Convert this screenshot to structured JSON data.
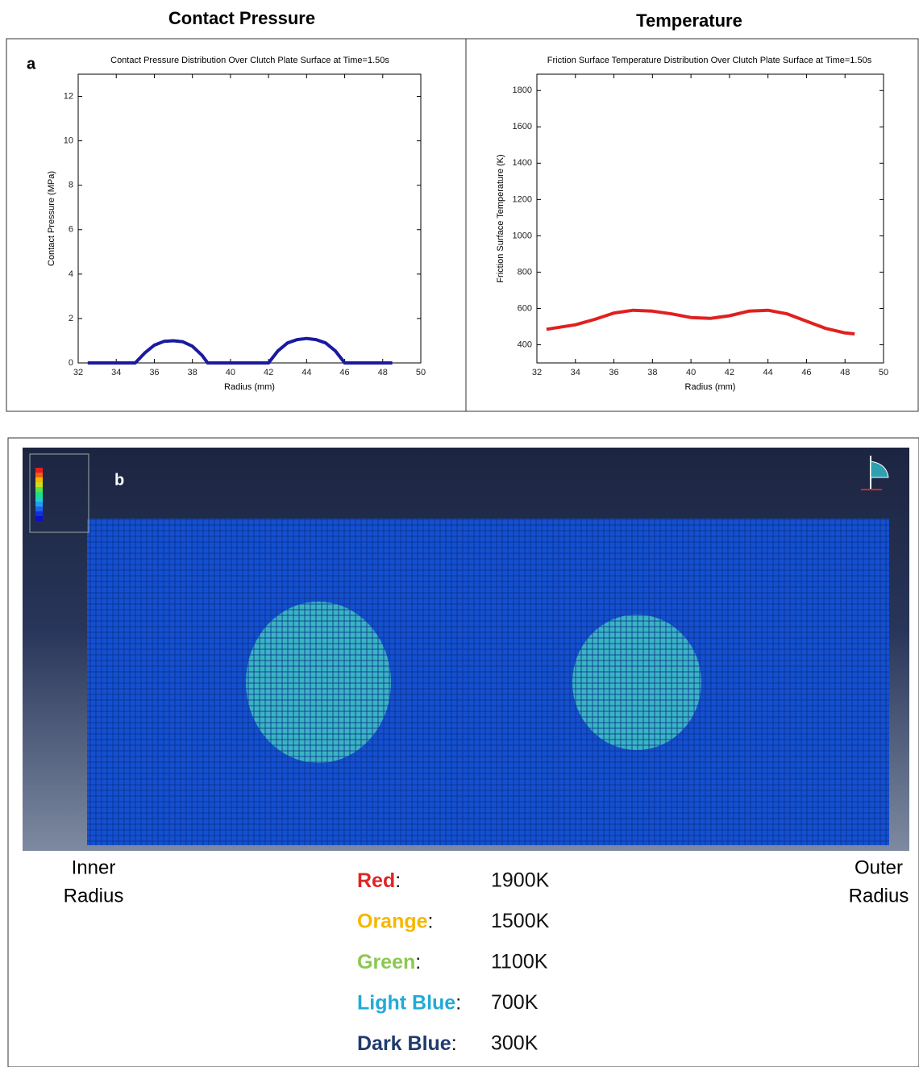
{
  "headers": [
    "Contact Pressure",
    "Temperature"
  ],
  "panel_labels": [
    "a",
    "b"
  ],
  "chart_data": [
    {
      "type": "line",
      "title": "Contact Pressure Distribution Over Clutch Plate Surface at Time=1.50s",
      "x_label": "Radius (mm)",
      "y_label": "Contact Pressure (MPa)",
      "x": [
        32.5,
        33,
        34,
        35,
        35.5,
        36,
        36.5,
        37,
        37.5,
        38,
        38.5,
        38.8,
        39,
        40,
        41,
        42,
        42.5,
        43,
        43.5,
        44,
        44.5,
        45,
        45.5,
        46,
        47,
        48,
        48.5
      ],
      "series": [
        {
          "color": "#1a1aa0",
          "values": [
            0,
            0,
            0,
            0,
            0.45,
            0.8,
            0.97,
            1.0,
            0.95,
            0.75,
            0.35,
            0,
            0,
            0,
            0,
            0,
            0.55,
            0.9,
            1.05,
            1.1,
            1.05,
            0.9,
            0.55,
            0,
            0,
            0,
            0
          ]
        }
      ],
      "xlim": [
        32,
        50
      ],
      "ylim": [
        0,
        13
      ],
      "xticks": [
        32,
        34,
        36,
        38,
        40,
        42,
        44,
        46,
        48,
        50
      ],
      "yticks": [
        0,
        2,
        4,
        6,
        8,
        10,
        12
      ]
    },
    {
      "type": "line",
      "title": "Friction Surface Temperature Distribution Over Clutch Plate Surface at Time=1.50s",
      "x_label": "Radius (mm)",
      "y_label": "Friction Surface Temperature (K)",
      "x": [
        32.5,
        34,
        35,
        36,
        37,
        38,
        39,
        40,
        41,
        42,
        43,
        44,
        45,
        46,
        47,
        48,
        48.5
      ],
      "series": [
        {
          "color": "#e02020",
          "values": [
            485,
            510,
            540,
            575,
            590,
            585,
            570,
            550,
            545,
            560,
            585,
            590,
            570,
            530,
            490,
            465,
            460
          ]
        }
      ],
      "xlim": [
        32,
        50
      ],
      "ylim": [
        300,
        1890
      ],
      "xticks": [
        32,
        34,
        36,
        38,
        40,
        42,
        44,
        46,
        48,
        50
      ],
      "yticks": [
        400,
        600,
        800,
        1000,
        1200,
        1400,
        1600,
        1800
      ]
    }
  ],
  "panel_b": {
    "inner": [
      "Inner",
      "Radius"
    ],
    "outer": [
      "Outer",
      "Radius"
    ],
    "separator": ":",
    "legend": [
      {
        "name": "Red",
        "color": "#e02424",
        "value": "1900K"
      },
      {
        "name": "Orange",
        "color": "#f5b800",
        "value": "1500K"
      },
      {
        "name": "Green",
        "color": "#8cc850",
        "value": "1100K"
      },
      {
        "name": "Light Blue",
        "color": "#22aad8",
        "value": "700K"
      },
      {
        "name": "Dark Blue",
        "color": "#1f3a6e",
        "value": "300K"
      }
    ]
  }
}
